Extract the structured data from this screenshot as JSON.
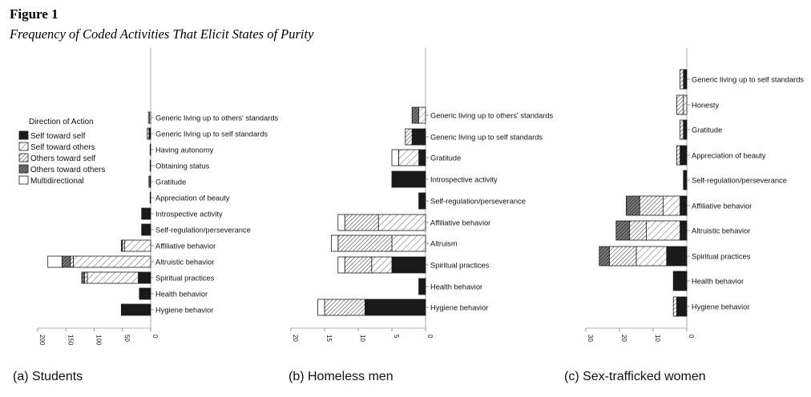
{
  "figure": {
    "label": "Figure 1",
    "title": "Frequency of Coded Activities That Elicit States of Purity"
  },
  "legend": {
    "title": "Direction of Action",
    "entries": [
      {
        "key": "self_self",
        "label": "Self toward self",
        "fill": "solid"
      },
      {
        "key": "self_others",
        "label": "Self toward others",
        "fill": "sparse-hatch"
      },
      {
        "key": "others_self",
        "label": "Others toward self",
        "fill": "hatch"
      },
      {
        "key": "others_others",
        "label": "Others toward others",
        "fill": "dense-hatch"
      },
      {
        "key": "multi",
        "label": "Multidirectional",
        "fill": "empty"
      }
    ]
  },
  "colors": {
    "ink": "#1a1a1a",
    "axis": "#888888",
    "background": "#ffffff"
  },
  "chart_data": [
    {
      "type": "bar",
      "orientation": "horizontal",
      "stacked": true,
      "caption": "(a) Students",
      "xlim": [
        0,
        200
      ],
      "xticks": [
        200,
        150,
        100,
        50,
        0
      ],
      "x_reversed": true,
      "categories": [
        "Generic living up to others' standards",
        "Generic living up to self standards",
        "Having autonomy",
        "Obtaining status",
        "Gratitude",
        "Appreciation of beauty",
        "Introspective activity",
        "Self-regulation/perseverance",
        "Affiliative behavior",
        "Altruistic behavior",
        "Spiritual practices",
        "Health behavior",
        "Hygiene behavior"
      ],
      "series": [
        {
          "name": "Self toward self",
          "values": [
            0,
            3,
            1,
            1,
            1,
            1,
            16,
            16,
            0,
            0,
            22,
            20,
            52
          ]
        },
        {
          "name": "Self toward others",
          "values": [
            0,
            0,
            0,
            0,
            0,
            0,
            0,
            0,
            46,
            137,
            90,
            0,
            0
          ]
        },
        {
          "name": "Others toward self",
          "values": [
            2,
            3,
            0,
            0,
            0,
            0,
            0,
            0,
            4,
            5,
            5,
            0,
            0
          ]
        },
        {
          "name": "Others toward others",
          "values": [
            0,
            0,
            0,
            0,
            2,
            0,
            0,
            0,
            2,
            15,
            5,
            0,
            0
          ]
        },
        {
          "name": "Multidirectional",
          "values": [
            2,
            0,
            0,
            0,
            0,
            0,
            0,
            0,
            0,
            25,
            0,
            0,
            0
          ]
        }
      ]
    },
    {
      "type": "bar",
      "orientation": "horizontal",
      "stacked": true,
      "caption": "(b) Homeless men",
      "xlim": [
        0,
        20
      ],
      "xticks": [
        20,
        15,
        10,
        5,
        0
      ],
      "x_reversed": true,
      "categories": [
        "Generic living up to others' standards",
        "Generic living up to self standards",
        "Gratitude",
        "Introspective activity",
        "Self-regulation/perseverance",
        "Affiliative behavior",
        "Altruism",
        "Spiritual practices",
        "Health behavior",
        "Hygiene behavior"
      ],
      "series": [
        {
          "name": "Self toward self",
          "values": [
            0,
            2,
            1,
            5,
            1,
            0,
            0,
            5,
            1,
            9
          ]
        },
        {
          "name": "Self toward others",
          "values": [
            1,
            0,
            3,
            0,
            0,
            7,
            5,
            3,
            0,
            0
          ]
        },
        {
          "name": "Others toward self",
          "values": [
            0,
            1,
            0,
            0,
            0,
            5,
            8,
            4,
            0,
            6
          ]
        },
        {
          "name": "Others toward others",
          "values": [
            1,
            0,
            0,
            0,
            0,
            0,
            0,
            0,
            0,
            0
          ]
        },
        {
          "name": "Multidirectional",
          "values": [
            0,
            0,
            1,
            0,
            0,
            1,
            1,
            1,
            0,
            1
          ]
        }
      ]
    },
    {
      "type": "bar",
      "orientation": "horizontal",
      "stacked": true,
      "caption": "(c) Sex-trafficked women",
      "xlim": [
        0,
        30
      ],
      "xticks": [
        30,
        20,
        10,
        0
      ],
      "x_reversed": true,
      "categories": [
        "Generic living up to self standards",
        "Honesty",
        "Gratitude",
        "Appreciation of beauty",
        "Self-regulation/perseverance",
        "Affiliative behavior",
        "Altruistic behavior",
        "Spiritual practices",
        "Health behavior",
        "Hygiene behavior"
      ],
      "series": [
        {
          "name": "Self toward self",
          "values": [
            1,
            0,
            1,
            2,
            1,
            2,
            2,
            6,
            4,
            3
          ]
        },
        {
          "name": "Self toward others",
          "values": [
            0,
            1,
            0,
            0,
            0,
            5,
            10,
            9,
            0,
            0
          ]
        },
        {
          "name": "Others toward self",
          "values": [
            1,
            2,
            1,
            1,
            0,
            7,
            5,
            8,
            0,
            1
          ]
        },
        {
          "name": "Others toward others",
          "values": [
            0,
            0,
            0,
            0,
            0,
            4,
            4,
            3,
            0,
            0
          ]
        },
        {
          "name": "Multidirectional",
          "values": [
            0,
            0,
            0,
            0,
            0,
            0,
            0,
            0,
            0,
            0
          ]
        }
      ]
    }
  ]
}
